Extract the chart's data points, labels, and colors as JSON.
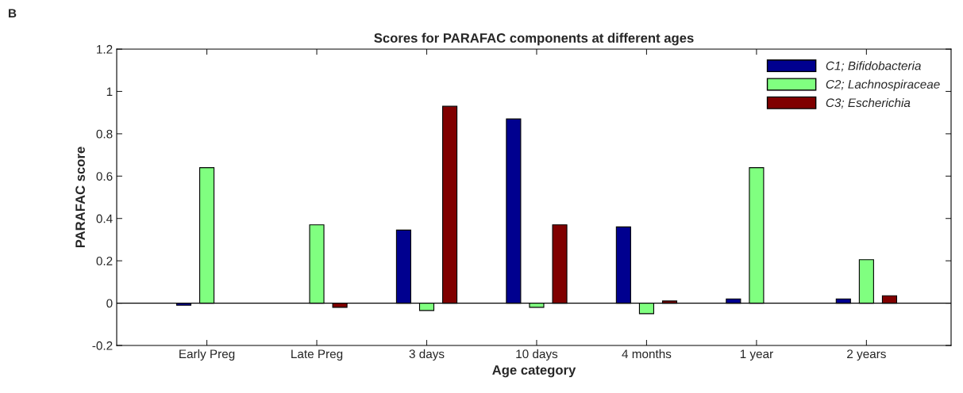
{
  "chart_data": {
    "type": "bar",
    "title": "Scores for PARAFAC components at different ages",
    "xlabel": "Age category",
    "ylabel": "PARAFAC score",
    "annotations": [
      "B"
    ],
    "categories": [
      "Early Preg",
      "Late Preg",
      "3 days",
      "10 days",
      "4 months",
      "1 year",
      "2 years"
    ],
    "series": [
      {
        "name": "C1; Bifidobacteria",
        "color": "#00008f",
        "values": [
          -0.01,
          null,
          0.345,
          0.87,
          0.36,
          0.02,
          0.02
        ]
      },
      {
        "name": "C2; Lachnospiraceae",
        "color": "#80ff80",
        "values": [
          0.64,
          0.37,
          -0.035,
          -0.02,
          -0.05,
          0.64,
          0.205
        ]
      },
      {
        "name": "C3; Escherichia",
        "color": "#800000",
        "values": [
          null,
          -0.02,
          0.93,
          0.37,
          0.01,
          null,
          0.035
        ]
      }
    ],
    "ylim": [
      -0.2,
      1.2
    ],
    "yticks": [
      -0.2,
      0,
      0.2,
      0.4,
      0.6,
      0.8,
      1,
      1.2
    ],
    "ref_lines": [
      {
        "axis": "y",
        "value": 0,
        "color": "#000000"
      }
    ],
    "grid": false,
    "legend": "top right"
  }
}
